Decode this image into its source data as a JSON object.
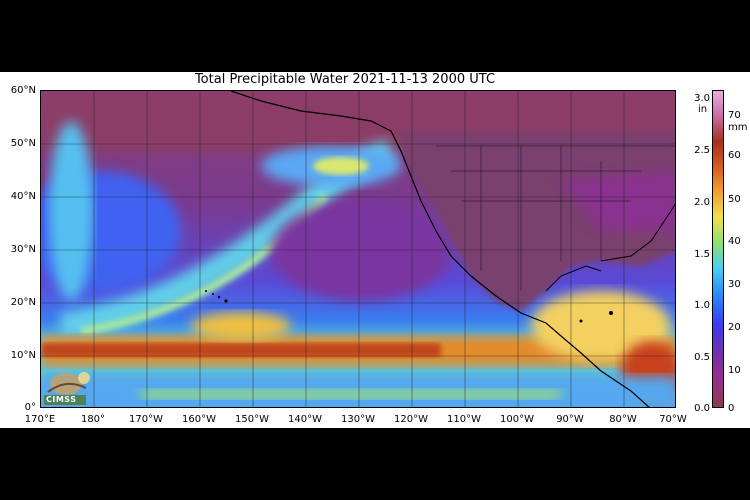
{
  "title": "Total Precipitable Water  2021-11-13 2000 UTC",
  "lat_labels": [
    "60°N",
    "50°N",
    "40°N",
    "30°N",
    "20°N",
    "10°N",
    "0°"
  ],
  "lon_labels": [
    "170°E",
    "180°",
    "170°W",
    "160°W",
    "150°W",
    "140°W",
    "130°W",
    "120°W",
    "110°W",
    "100°W",
    "90°W",
    "80°W",
    "70°W"
  ],
  "colorbar": {
    "inch_unit": "in",
    "mm_unit": "mm",
    "inch_ticks": [
      "3.0",
      "2.5",
      "2.0",
      "1.5",
      "1.0",
      "0.5",
      "0.0"
    ],
    "mm_ticks": [
      "70",
      "60",
      "50",
      "40",
      "30",
      "20",
      "10",
      "0"
    ]
  },
  "logo_text": "CIMSS",
  "colors": {
    "dry_low": "#7a3b5a",
    "purple": "#8b2f8f",
    "blue": "#3060ff",
    "cyan": "#55c8f0",
    "green": "#8fe07a",
    "yellow": "#f5d84a",
    "orange": "#e07a20",
    "red": "#b02818",
    "land_outline": "#000000"
  }
}
